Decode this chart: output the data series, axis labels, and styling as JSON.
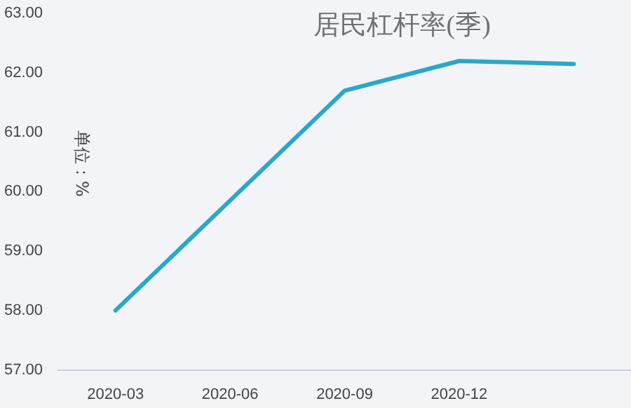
{
  "chart_data": {
    "type": "line",
    "title": "居民杠杆率(季)",
    "ylabel": "单位：%",
    "categories": [
      "2020-03",
      "2020-06",
      "2020-09",
      "2020-12",
      null
    ],
    "series": [
      {
        "color": "#2aa7c9",
        "values": [
          58.0,
          59.85,
          61.7,
          62.2,
          62.15
        ]
      }
    ],
    "ylim": [
      57,
      63
    ],
    "yticks": [
      {
        "value": 57,
        "label": "57.00"
      },
      {
        "value": 58,
        "label": "58.00"
      },
      {
        "value": 59,
        "label": "59.00"
      },
      {
        "value": 60,
        "label": "60.00"
      },
      {
        "value": 61,
        "label": "61.00"
      },
      {
        "value": 62,
        "label": "62.00"
      },
      {
        "value": 63,
        "label": "63.00"
      }
    ],
    "grid": false,
    "legend": false,
    "marker": "none",
    "line_style": "solid"
  }
}
